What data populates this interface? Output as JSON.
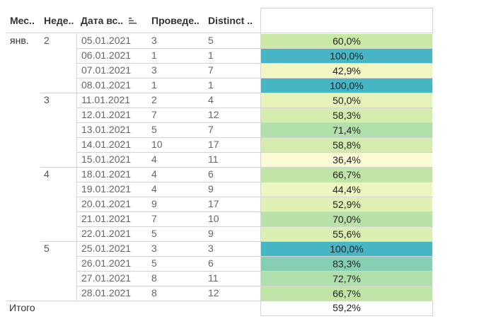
{
  "header": {
    "month": "Мес..",
    "week": "Неде..",
    "date": "Дата вс..",
    "held": "Проведе..",
    "distinct": "Distinct .."
  },
  "month_label": "янв.",
  "weeks": [
    "2",
    "3",
    "4",
    "5"
  ],
  "rows": [
    {
      "date": "05.01.2021",
      "held": "3",
      "distinct": "5",
      "pct": "60,0%",
      "color": "#c9e9a5"
    },
    {
      "date": "06.01.2021",
      "held": "1",
      "distinct": "1",
      "pct": "100,0%",
      "color": "#46b5c4"
    },
    {
      "date": "07.01.2021",
      "held": "3",
      "distinct": "7",
      "pct": "42,9%",
      "color": "#f2f6c2"
    },
    {
      "date": "08.01.2021",
      "held": "1",
      "distinct": "1",
      "pct": "100,0%",
      "color": "#46b5c4"
    },
    {
      "date": "11.01.2021",
      "held": "2",
      "distinct": "4",
      "pct": "50,0%",
      "color": "#e6f3b8"
    },
    {
      "date": "12.01.2021",
      "held": "7",
      "distinct": "12",
      "pct": "58,3%",
      "color": "#d5ecaf"
    },
    {
      "date": "13.01.2021",
      "held": "5",
      "distinct": "7",
      "pct": "71,4%",
      "color": "#b2e0aa"
    },
    {
      "date": "14.01.2021",
      "held": "10",
      "distinct": "17",
      "pct": "58,8%",
      "color": "#d3ecae"
    },
    {
      "date": "15.01.2021",
      "held": "4",
      "distinct": "11",
      "pct": "36,4%",
      "color": "#fafbd4"
    },
    {
      "date": "18.01.2021",
      "held": "4",
      "distinct": "6",
      "pct": "66,7%",
      "color": "#bfe5a7"
    },
    {
      "date": "19.01.2021",
      "held": "4",
      "distinct": "9",
      "pct": "44,4%",
      "color": "#eff5bf"
    },
    {
      "date": "20.01.2021",
      "held": "9",
      "distinct": "17",
      "pct": "52,9%",
      "color": "#e0f1b5"
    },
    {
      "date": "21.01.2021",
      "held": "7",
      "distinct": "10",
      "pct": "70,0%",
      "color": "#b7e2a8"
    },
    {
      "date": "22.01.2021",
      "held": "5",
      "distinct": "9",
      "pct": "55,6%",
      "color": "#dbefb2"
    },
    {
      "date": "25.01.2021",
      "held": "3",
      "distinct": "3",
      "pct": "100,0%",
      "color": "#46b5c4"
    },
    {
      "date": "26.01.2021",
      "held": "5",
      "distinct": "6",
      "pct": "83,3%",
      "color": "#86cfb4"
    },
    {
      "date": "27.01.2021",
      "held": "8",
      "distinct": "11",
      "pct": "72,7%",
      "color": "#afdfaa"
    },
    {
      "date": "28.01.2021",
      "held": "8",
      "distinct": "12",
      "pct": "66,7%",
      "color": "#bfe5a7"
    }
  ],
  "total": {
    "label": "Итого",
    "pct": "59,2%"
  }
}
